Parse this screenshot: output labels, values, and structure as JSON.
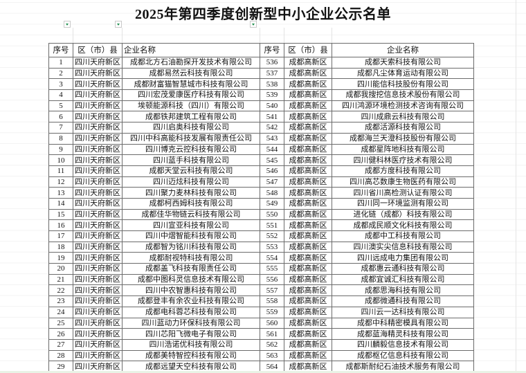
{
  "title": "2025年第四季度创新型中小企业公示名单",
  "headers": {
    "seq": "序号",
    "district": "区（市）县",
    "company": "企业名称"
  },
  "left_rows": [
    [
      "1",
      "四川天府新区",
      "成都北方石油勘探开发技术有限公司"
    ],
    [
      "2",
      "四川天府新区",
      "成都易然云科技有限公司"
    ],
    [
      "3",
      "四川天府新区",
      "成都财富猫智慧城市科技有限公司"
    ],
    [
      "4",
      "四川天府新区",
      "四川宏茂爱康医疗科技有限公司"
    ],
    [
      "5",
      "四川天府新区",
      "埃顿能源科技（四川）有限公司"
    ],
    [
      "6",
      "四川天府新区",
      "成都铁邦建筑工程有限公司"
    ],
    [
      "7",
      "四川天府新区",
      "四川启奥科技有限公司"
    ],
    [
      "8",
      "四川天府新区",
      "四川中科高能科技发展有限责任公司"
    ],
    [
      "9",
      "四川天府新区",
      "四川博克云控科技有限公司"
    ],
    [
      "10",
      "四川天府新区",
      "四川蓝手科技有限公司"
    ],
    [
      "11",
      "四川天府新区",
      "成都天堂云科技有限公司"
    ],
    [
      "12",
      "四川天府新区",
      "四川迈炫科技有限公司"
    ],
    [
      "13",
      "四川天府新区",
      "四川聚力麦林科技有限公司"
    ],
    [
      "14",
      "四川天府新区",
      "成都柯西姆科技有限公司"
    ],
    [
      "15",
      "四川天府新区",
      "成都佳华物链云科技有限公司"
    ],
    [
      "16",
      "四川天府新区",
      "四川宣亚科技有限公司"
    ],
    [
      "17",
      "四川天府新区",
      "四川中熠智能科技有限公司"
    ],
    [
      "18",
      "四川天府新区",
      "成都智为铭川科技有限公司"
    ],
    [
      "19",
      "四川天府新区",
      "成都耐视特科技有限公司"
    ],
    [
      "20",
      "四川天府新区",
      "成都盖飞科技有限责任公司"
    ],
    [
      "21",
      "四川天府新区",
      "成都中图科灵信息技术有限公司"
    ],
    [
      "22",
      "四川天府新区",
      "四川中农智惠科技有限公司"
    ],
    [
      "23",
      "四川天府新区",
      "成都登丰有余农业科技有限公司"
    ],
    [
      "24",
      "四川天府新区",
      "成都电科蓉芯科技有限公司"
    ],
    [
      "25",
      "四川天府新区",
      "四川蓝动力环保科技有限公司"
    ],
    [
      "26",
      "四川天府新区",
      "四川芯阳飞微电子有限公司"
    ],
    [
      "27",
      "四川天府新区",
      "四川浩诺优科技有限公司"
    ],
    [
      "28",
      "四川天府新区",
      "成都美特智控科技有限公司"
    ],
    [
      "29",
      "四川天府新区",
      "成都远望天空科技有限公司"
    ]
  ],
  "right_rows": [
    [
      "536",
      "成都高新区",
      "成都天索科技有限公司"
    ],
    [
      "537",
      "成都高新区",
      "成都凡尘体育运动有限公司"
    ],
    [
      "538",
      "成都高新区",
      "四川能信科技股份有限公司"
    ],
    [
      "539",
      "成都高新区",
      "成都我搜挖信息技术股份有限公司"
    ],
    [
      "540",
      "成都高新区",
      "四川鸿源环境检测技术咨询有限公司"
    ],
    [
      "541",
      "成都高新区",
      "四川成鼎云科技有限公司"
    ],
    [
      "542",
      "成都高新区",
      "成都活源科技有限公司"
    ],
    [
      "543",
      "成都高新区",
      "成都海兰天澄科技股份有限公司"
    ],
    [
      "544",
      "成都高新区",
      "成都星阵地科技有限公司"
    ],
    [
      "545",
      "成都高新区",
      "四川健科林医疗技术有限公司"
    ],
    [
      "546",
      "成都高新区",
      "成都方度科技有限公司"
    ],
    [
      "547",
      "成都高新区",
      "四川高芯数康生物医药有限公司"
    ],
    [
      "548",
      "成都高新区",
      "四川省川高检测认证有限公司"
    ],
    [
      "549",
      "成都高新区",
      "四川同一环境监测有限公司"
    ],
    [
      "550",
      "成都高新区",
      "进化链（成都）科技有限公司"
    ],
    [
      "551",
      "成都高新区",
      "成都成民顺文化科技有限公司"
    ],
    [
      "552",
      "成都高新区",
      "成都中工科技有限公司"
    ],
    [
      "553",
      "成都高新区",
      "四川澳实尖信息科技有限公司"
    ],
    [
      "554",
      "成都高新区",
      "四川远成电力集团有限公司"
    ],
    [
      "555",
      "成都高新区",
      "成都惠云通科技有限公司"
    ],
    [
      "556",
      "成都高新区",
      "成都宜诚汇科技有限公司"
    ],
    [
      "557",
      "成都高新区",
      "成都思海科技有限公司"
    ],
    [
      "558",
      "成都高新区",
      "成都微通科技有限公司"
    ],
    [
      "559",
      "成都高新区",
      "四川云一达科技有限公司"
    ],
    [
      "560",
      "成都高新区",
      "成都中科精密模具有限公司"
    ],
    [
      "561",
      "成都高新区",
      "成都蓝海精灵科技有限公司"
    ],
    [
      "562",
      "成都高新区",
      "四川麟毅信息技术有限公司"
    ],
    [
      "563",
      "成都高新区",
      "成都枢亿信息科技有限公司"
    ],
    [
      "564",
      "成都高新区",
      "成都斯耐纪石油技术服务有限公司"
    ]
  ],
  "colors": {
    "filter_arrow": "#1f8f4e",
    "border": "#6b6b6b",
    "gridline": "#e6e6e6"
  }
}
